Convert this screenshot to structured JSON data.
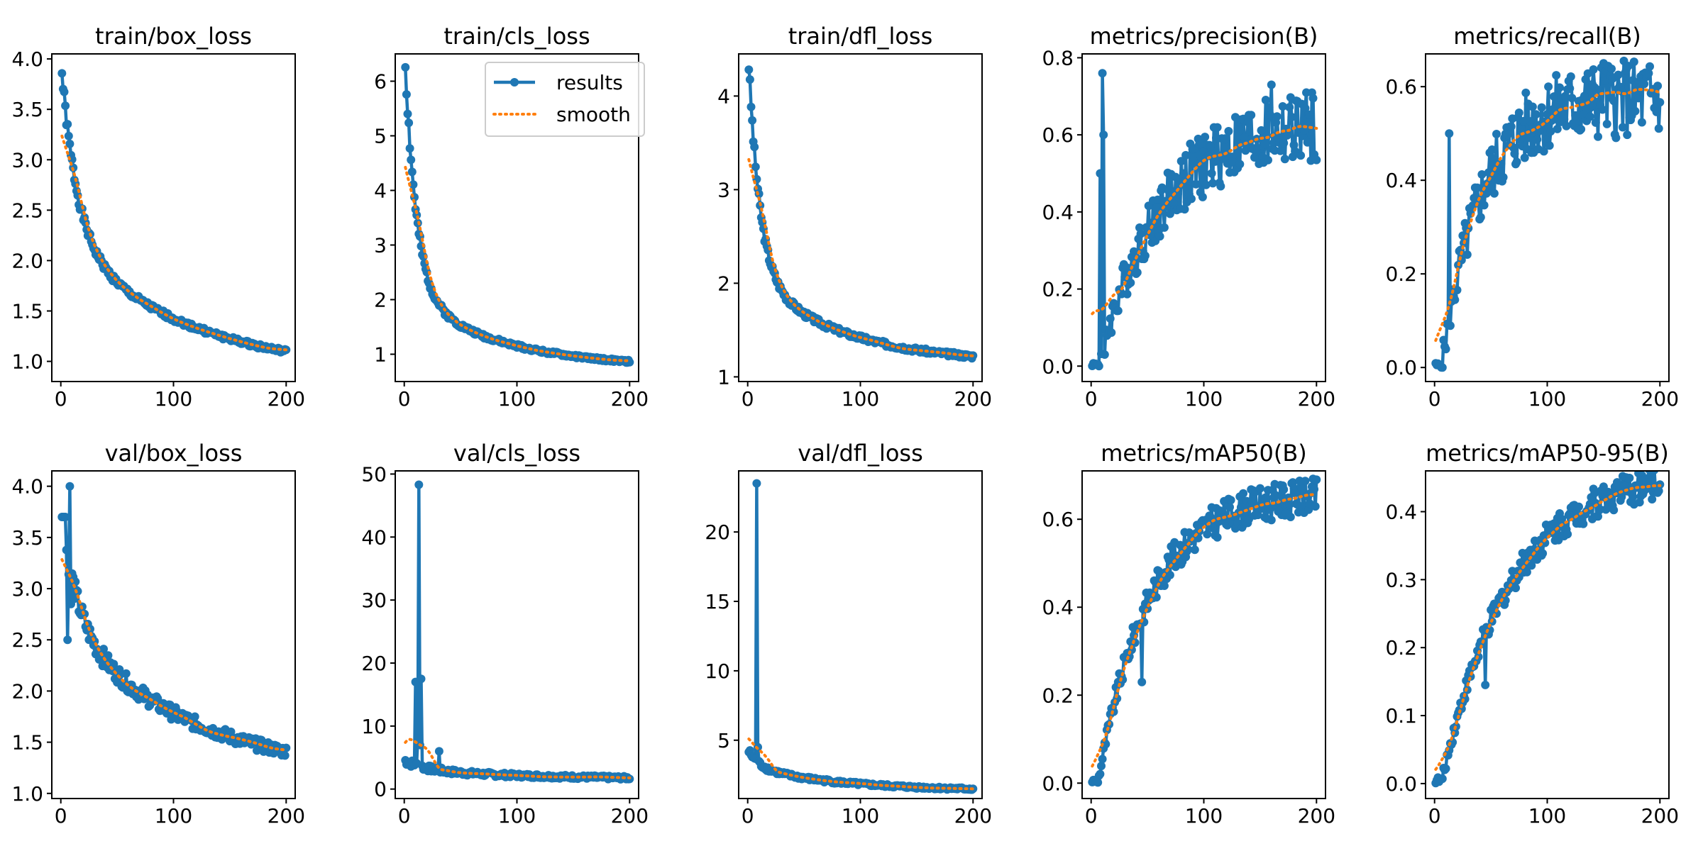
{
  "colors": {
    "results": "#1f77b4",
    "smooth": "#ff7f0e",
    "axes": "#000000",
    "background": "#ffffff"
  },
  "legend": {
    "results_label": "results",
    "smooth_label": "smooth",
    "location": "upper-right of train/cls_loss panel"
  },
  "chart_data": [
    {
      "type": "line",
      "title": "train/box_loss",
      "xlim": [
        -8,
        208
      ],
      "ylim": [
        0.8,
        4.05
      ],
      "xticks": [
        0,
        100,
        200
      ],
      "xtick_labels": [
        "0",
        "100",
        "200"
      ],
      "yticks": [
        1.0,
        1.5,
        2.0,
        2.5,
        3.0,
        3.5,
        4.0
      ],
      "ytick_labels": [
        "1.0",
        "1.5",
        "2.0",
        "2.5",
        "3.0",
        "3.5",
        "4.0"
      ],
      "epochs": 200,
      "legend": false,
      "series_profile": {
        "kind": "decay",
        "start": 3.85,
        "end": 0.87,
        "tau": 14,
        "k": 0.45,
        "noise": 0.02,
        "seed": 1
      },
      "spikes": []
    },
    {
      "type": "line",
      "title": "train/cls_loss",
      "xlim": [
        -8,
        208
      ],
      "ylim": [
        0.5,
        6.5
      ],
      "xticks": [
        0,
        100,
        200
      ],
      "xtick_labels": [
        "0",
        "100",
        "200"
      ],
      "yticks": [
        1,
        2,
        3,
        4,
        5,
        6
      ],
      "ytick_labels": [
        "1",
        "2",
        "3",
        "4",
        "5",
        "6"
      ],
      "epochs": 200,
      "legend": true,
      "series_profile": {
        "kind": "decay",
        "start": 6.3,
        "end": 0.75,
        "tau": 10,
        "k": 0.25,
        "noise": 0.03,
        "seed": 2
      },
      "spikes": []
    },
    {
      "type": "line",
      "title": "train/dfl_loss",
      "xlim": [
        -8,
        208
      ],
      "ylim": [
        0.95,
        4.45
      ],
      "xticks": [
        0,
        100,
        200
      ],
      "xtick_labels": [
        "0",
        "100",
        "200"
      ],
      "yticks": [
        1,
        2,
        3,
        4
      ],
      "ytick_labels": [
        "1",
        "2",
        "3",
        "4"
      ],
      "epochs": 200,
      "legend": false,
      "series_profile": {
        "kind": "decay",
        "start": 4.33,
        "end": 1.14,
        "tau": 10,
        "k": 0.3,
        "noise": 0.02,
        "seed": 3
      },
      "spikes": []
    },
    {
      "type": "line",
      "title": "metrics/precision(B)",
      "xlim": [
        -8,
        208
      ],
      "ylim": [
        -0.04,
        0.81
      ],
      "xticks": [
        0,
        100,
        200
      ],
      "xtick_labels": [
        "0",
        "100",
        "200"
      ],
      "yticks": [
        0.0,
        0.2,
        0.4,
        0.6,
        0.8
      ],
      "ytick_labels": [
        "0.0",
        "0.2",
        "0.4",
        "0.6",
        "0.8"
      ],
      "epochs": 200,
      "legend": false,
      "series_profile": {
        "kind": "rise",
        "start": 0.0,
        "end": 0.64,
        "tau": 55,
        "noise": 0.07,
        "seed": 4,
        "zero_until": 6
      },
      "spikes": [
        [
          8,
          0.5
        ],
        [
          10,
          0.76
        ],
        [
          11,
          0.6
        ],
        [
          12,
          0.03
        ],
        [
          160,
          0.73
        ]
      ]
    },
    {
      "type": "line",
      "title": "metrics/recall(B)",
      "xlim": [
        -8,
        208
      ],
      "ylim": [
        -0.03,
        0.67
      ],
      "xticks": [
        0,
        100,
        200
      ],
      "xtick_labels": [
        "0",
        "100",
        "200"
      ],
      "yticks": [
        0.0,
        0.2,
        0.4,
        0.6
      ],
      "ytick_labels": [
        "0.0",
        "0.2",
        "0.4",
        "0.6"
      ],
      "epochs": 200,
      "legend": false,
      "series_profile": {
        "kind": "rise",
        "start": 0.0,
        "end": 0.58,
        "tau": 35,
        "noise": 0.06,
        "seed": 5,
        "zero_until": 6
      },
      "spikes": [
        [
          13,
          0.5
        ],
        [
          150,
          0.65
        ]
      ]
    },
    {
      "type": "line",
      "title": "val/box_loss",
      "xlim": [
        -8,
        208
      ],
      "ylim": [
        0.95,
        4.15
      ],
      "xticks": [
        0,
        100,
        200
      ],
      "xtick_labels": [
        "0",
        "100",
        "200"
      ],
      "yticks": [
        1.0,
        1.5,
        2.0,
        2.5,
        3.0,
        3.5,
        4.0
      ],
      "ytick_labels": [
        "1.0",
        "1.5",
        "2.0",
        "2.5",
        "3.0",
        "3.5",
        "4.0"
      ],
      "epochs": 200,
      "legend": false,
      "series_profile": {
        "kind": "decay",
        "start": 3.7,
        "end": 1.15,
        "tau": 14,
        "k": 0.6,
        "noise": 0.04,
        "seed": 6
      },
      "spikes": [
        [
          1,
          3.7
        ],
        [
          2,
          3.7
        ],
        [
          3,
          3.7
        ],
        [
          4,
          3.7
        ],
        [
          6,
          2.5
        ],
        [
          8,
          4.0
        ],
        [
          9,
          2.85
        ]
      ]
    },
    {
      "type": "line",
      "title": "val/cls_loss",
      "xlim": [
        -8,
        208
      ],
      "ylim": [
        -1.5,
        50.5
      ],
      "xticks": [
        0,
        100,
        200
      ],
      "xtick_labels": [
        "0",
        "100",
        "200"
      ],
      "yticks": [
        0,
        10,
        20,
        30,
        40,
        50
      ],
      "ytick_labels": [
        "0",
        "10",
        "20",
        "30",
        "40",
        "50"
      ],
      "epochs": 200,
      "legend": false,
      "series_profile": {
        "kind": "decay",
        "start": 4.5,
        "end": 1.3,
        "tau": 20,
        "k": 0.5,
        "noise": 0.15,
        "seed": 7
      },
      "spikes": [
        [
          10,
          17.0
        ],
        [
          12,
          8.0
        ],
        [
          13,
          48.3
        ],
        [
          14,
          7.0
        ],
        [
          15,
          17.5
        ],
        [
          31,
          6.0
        ]
      ]
    },
    {
      "type": "line",
      "title": "val/dfl_loss",
      "xlim": [
        -8,
        208
      ],
      "ylim": [
        0.8,
        24.4
      ],
      "xticks": [
        0,
        100,
        200
      ],
      "xtick_labels": [
        "0",
        "100",
        "200"
      ],
      "yticks": [
        5,
        10,
        15,
        20
      ],
      "ytick_labels": [
        "5",
        "10",
        "15",
        "20"
      ],
      "epochs": 200,
      "legend": false,
      "series_profile": {
        "kind": "decay",
        "start": 4.2,
        "end": 1.35,
        "tau": 10,
        "k": 0.6,
        "noise": 0.06,
        "seed": 8
      },
      "spikes": [
        [
          8,
          23.5
        ],
        [
          9,
          4.5
        ]
      ]
    },
    {
      "type": "line",
      "title": "metrics/mAP50(B)",
      "xlim": [
        -8,
        208
      ],
      "ylim": [
        -0.035,
        0.71
      ],
      "xticks": [
        0,
        100,
        200
      ],
      "xtick_labels": [
        "0",
        "100",
        "200"
      ],
      "yticks": [
        0.0,
        0.2,
        0.4,
        0.6
      ],
      "ytick_labels": [
        "0.0",
        "0.2",
        "0.4",
        "0.6"
      ],
      "epochs": 200,
      "legend": false,
      "series_profile": {
        "kind": "rise",
        "start": 0.0,
        "end": 0.66,
        "tau": 45,
        "noise": 0.03,
        "seed": 9,
        "zero_until": 6
      },
      "spikes": [
        [
          45,
          0.23
        ],
        [
          180,
          0.67
        ]
      ]
    },
    {
      "type": "line",
      "title": "metrics/mAP50-95(B)",
      "xlim": [
        -8,
        208
      ],
      "ylim": [
        -0.022,
        0.46
      ],
      "xticks": [
        0,
        100,
        200
      ],
      "xtick_labels": [
        "0",
        "100",
        "200"
      ],
      "yticks": [
        0.0,
        0.1,
        0.2,
        0.3,
        0.4
      ],
      "ytick_labels": [
        "0.0",
        "0.1",
        "0.2",
        "0.3",
        "0.4"
      ],
      "epochs": 200,
      "legend": false,
      "series_profile": {
        "kind": "rise",
        "start": 0.0,
        "end": 0.46,
        "tau": 60,
        "noise": 0.018,
        "seed": 10,
        "zero_until": 6
      },
      "spikes": [
        [
          45,
          0.145
        ],
        [
          200,
          0.44
        ]
      ]
    }
  ]
}
